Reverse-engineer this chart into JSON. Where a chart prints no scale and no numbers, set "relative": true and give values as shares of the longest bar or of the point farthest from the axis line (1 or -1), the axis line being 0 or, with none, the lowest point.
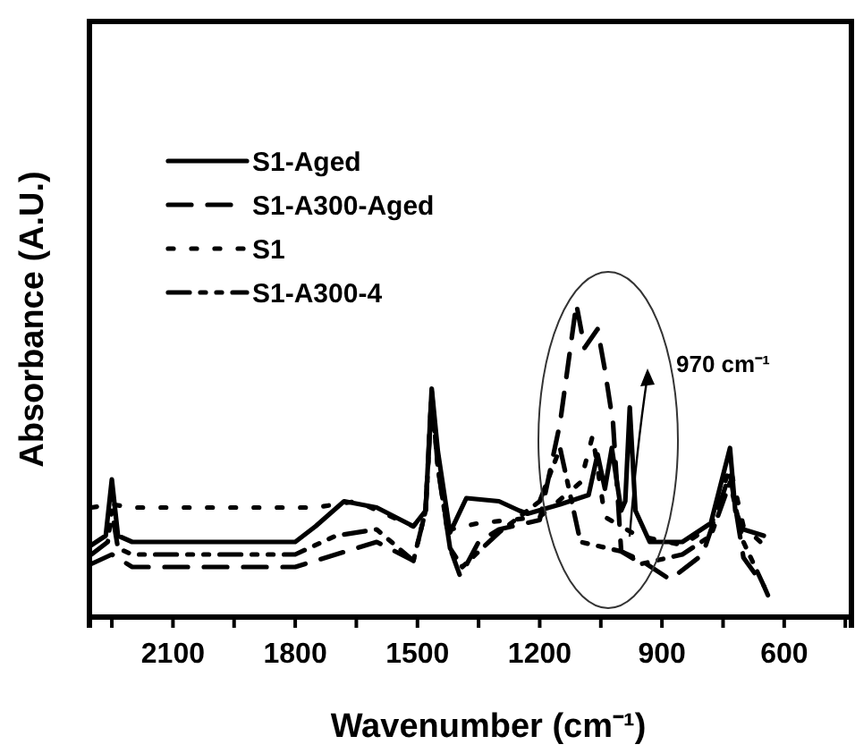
{
  "chart_data": {
    "type": "line",
    "relative": true,
    "xlabel": "Wavenumber (cm⁻¹)",
    "ylabel": "Absorbance (A.U.)",
    "xlim": [
      2305,
      435
    ],
    "xticks": [
      {
        "value": 2250,
        "label": null
      },
      2100,
      {
        "value": 1950,
        "label": null
      },
      1800,
      {
        "value": 1650,
        "label": null
      },
      1500,
      {
        "value": 1350,
        "label": null
      },
      1200,
      {
        "value": 1050,
        "label": null
      },
      900,
      {
        "value": 750,
        "label": null
      },
      600,
      {
        "value": 450,
        "label": null
      }
    ],
    "legend": "top left",
    "grid": false,
    "annotations": [
      "970 cm⁻¹"
    ],
    "series": [
      {
        "name": "S1-Aged",
        "color": "#000000",
        "line_style": "solid",
        "x": [
          2300,
          2265,
          2250,
          2235,
          2200,
          1800,
          1750,
          1680,
          1600,
          1510,
          1480,
          1465,
          1450,
          1420,
          1380,
          1300,
          1250,
          1230,
          1150,
          1080,
          1058,
          1040,
          1023,
          1000,
          990,
          979,
          965,
          930,
          850,
          780,
          733,
          720,
          700,
          650
        ],
        "values": [
          0.23,
          0.26,
          0.44,
          0.26,
          0.24,
          0.24,
          0.29,
          0.37,
          0.35,
          0.29,
          0.34,
          0.73,
          0.53,
          0.27,
          0.38,
          0.37,
          0.34,
          0.33,
          0.36,
          0.39,
          0.52,
          0.41,
          0.54,
          0.34,
          0.37,
          0.67,
          0.34,
          0.24,
          0.24,
          0.3,
          0.54,
          0.34,
          0.28,
          0.26
        ]
      },
      {
        "name": "S1-A300-Aged",
        "color": "#000000",
        "line_style": "dashed",
        "x": [
          2300,
          2250,
          2200,
          1800,
          1750,
          1600,
          1510,
          1480,
          1465,
          1450,
          1420,
          1395,
          1350,
          1300,
          1200,
          1150,
          1110,
          1090,
          1058,
          1040,
          1020,
          1000,
          950,
          880,
          800,
          733,
          700,
          650,
          640
        ],
        "values": [
          0.17,
          0.2,
          0.16,
          0.16,
          0.18,
          0.24,
          0.18,
          0.34,
          0.72,
          0.48,
          0.22,
          0.13,
          0.24,
          0.28,
          0.31,
          0.62,
          1,
          0.86,
          0.92,
          0.79,
          0.62,
          0.21,
          0.18,
          0.12,
          0.2,
          0.46,
          0.19,
          0.1,
          0.07
        ]
      },
      {
        "name": "S1",
        "color": "#000000",
        "line_style": "dotted",
        "x": [
          2300,
          2250,
          2200,
          1750,
          1650,
          1510,
          1480,
          1465,
          1450,
          1420,
          1350,
          1200,
          1100,
          1070,
          1040,
          960,
          850,
          780,
          733,
          700,
          650
        ],
        "values": [
          0.35,
          0.36,
          0.35,
          0.35,
          0.37,
          0.29,
          0.34,
          0.72,
          0.48,
          0.28,
          0.3,
          0.32,
          0.43,
          0.58,
          0.32,
          0.26,
          0.23,
          0.29,
          0.48,
          0.29,
          0.23
        ]
      },
      {
        "name": "S1-A300-4",
        "color": "#000000",
        "line_style": "dashdot",
        "x": [
          2300,
          2260,
          2250,
          2235,
          2200,
          1800,
          1700,
          1600,
          1510,
          1480,
          1465,
          1450,
          1420,
          1390,
          1300,
          1200,
          1150,
          1100,
          1000,
          950,
          850,
          780,
          733,
          700,
          650
        ],
        "values": [
          0.2,
          0.24,
          0.34,
          0.22,
          0.2,
          0.2,
          0.26,
          0.28,
          0.18,
          0.34,
          0.7,
          0.48,
          0.22,
          0.16,
          0.27,
          0.37,
          0.54,
          0.24,
          0.21,
          0.17,
          0.2,
          0.26,
          0.43,
          0.24,
          0.1
        ]
      }
    ]
  }
}
